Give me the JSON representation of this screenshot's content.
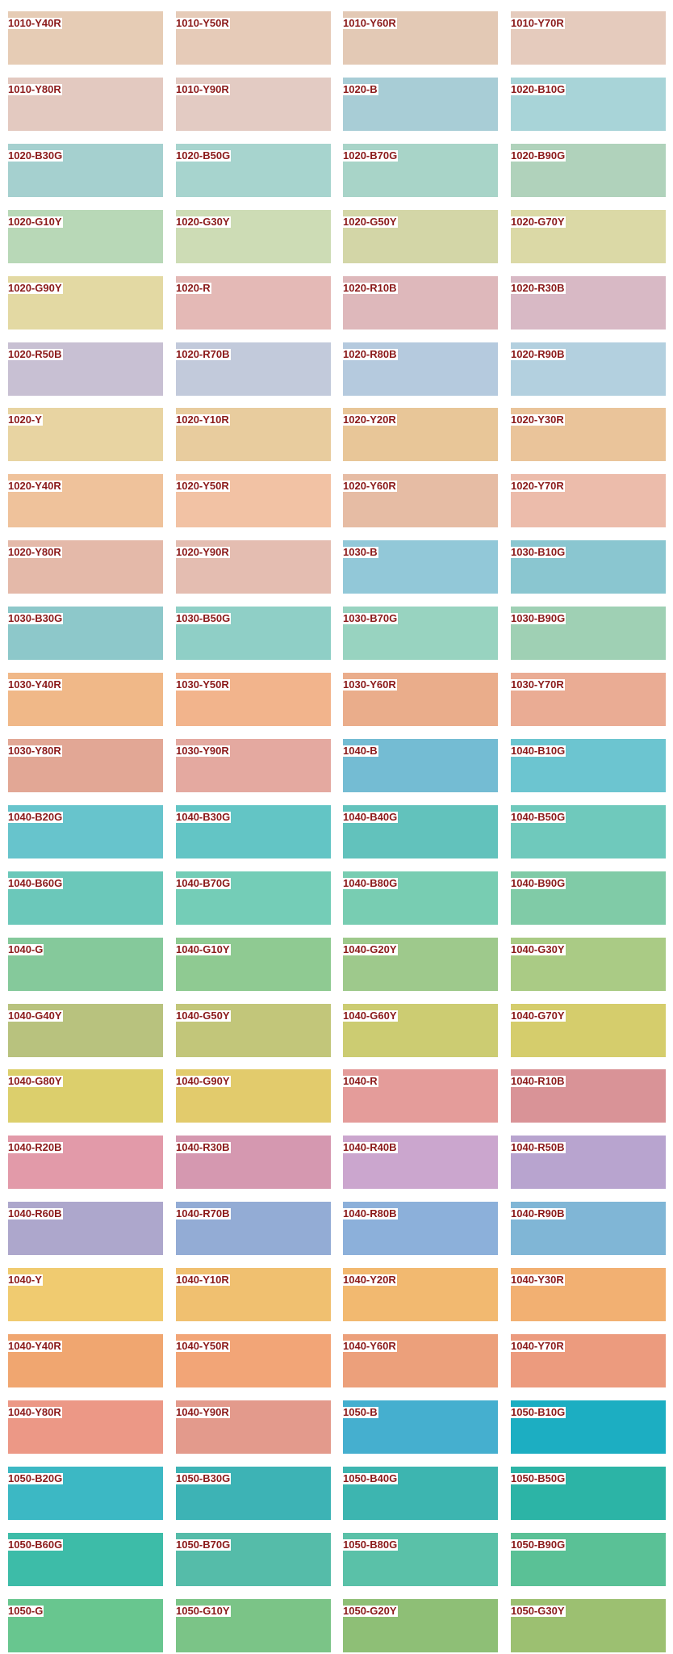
{
  "label_color": "#8b1a1a",
  "swatches": [
    {
      "label": "1010-Y40R",
      "color": "#e6ccb5"
    },
    {
      "label": "1010-Y50R",
      "color": "#e6cbb8"
    },
    {
      "label": "1010-Y60R",
      "color": "#e3c9b5"
    },
    {
      "label": "1010-Y70R",
      "color": "#e5cbbd"
    },
    {
      "label": "1010-Y80R",
      "color": "#e3c9c0"
    },
    {
      "label": "1010-Y90R",
      "color": "#e3cbc3"
    },
    {
      "label": "1020-B",
      "color": "#a8cdd6"
    },
    {
      "label": "1020-B10G",
      "color": "#a8d4d8"
    },
    {
      "label": "1020-B30G",
      "color": "#a5d0cf"
    },
    {
      "label": "1020-B50G",
      "color": "#a7d4ce"
    },
    {
      "label": "1020-B70G",
      "color": "#a8d4c8"
    },
    {
      "label": "1020-B90G",
      "color": "#b0d2bb"
    },
    {
      "label": "1020-G10Y",
      "color": "#b8d8b7"
    },
    {
      "label": "1020-G30Y",
      "color": "#cddcb5"
    },
    {
      "label": "1020-G50Y",
      "color": "#d3d6a7"
    },
    {
      "label": "1020-G70Y",
      "color": "#dbd9a6"
    },
    {
      "label": "1020-G90Y",
      "color": "#e3d9a3"
    },
    {
      "label": "1020-R",
      "color": "#e4b9b6"
    },
    {
      "label": "1020-R10B",
      "color": "#deb8bb"
    },
    {
      "label": "1020-R30B",
      "color": "#d8b9c5"
    },
    {
      "label": "1020-R50B",
      "color": "#c8c0d3"
    },
    {
      "label": "1020-R70B",
      "color": "#c2cadb"
    },
    {
      "label": "1020-R80B",
      "color": "#b5cade"
    },
    {
      "label": "1020-R90B",
      "color": "#b3d0df"
    },
    {
      "label": "1020-Y",
      "color": "#e8d4a2"
    },
    {
      "label": "1020-Y10R",
      "color": "#e8cc9e"
    },
    {
      "label": "1020-Y20R",
      "color": "#e8c698"
    },
    {
      "label": "1020-Y30R",
      "color": "#eac49a"
    },
    {
      "label": "1020-Y40R",
      "color": "#efc29b"
    },
    {
      "label": "1020-Y50R",
      "color": "#f2c2a4"
    },
    {
      "label": "1020-Y60R",
      "color": "#e6bca4"
    },
    {
      "label": "1020-Y70R",
      "color": "#ecbcab"
    },
    {
      "label": "1020-Y80R",
      "color": "#e4b9a9"
    },
    {
      "label": "1020-Y90R",
      "color": "#e4bdb1"
    },
    {
      "label": "1030-B",
      "color": "#92c8d8"
    },
    {
      "label": "1030-B10G",
      "color": "#8ac6d0"
    },
    {
      "label": "1030-B30G",
      "color": "#8dc8ca"
    },
    {
      "label": "1030-B50G",
      "color": "#8fcfc6"
    },
    {
      "label": "1030-B70G",
      "color": "#98d3c0"
    },
    {
      "label": "1030-B90G",
      "color": "#9fd0b4"
    },
    {
      "label": "1030-Y40R",
      "color": "#f0b888"
    },
    {
      "label": "1030-Y50R",
      "color": "#f2b48c"
    },
    {
      "label": "1030-Y60R",
      "color": "#eaad8b"
    },
    {
      "label": "1030-Y70R",
      "color": "#eaac94"
    },
    {
      "label": "1030-Y80R",
      "color": "#e2a795"
    },
    {
      "label": "1030-Y90R",
      "color": "#e4a9a0"
    },
    {
      "label": "1040-B",
      "color": "#74bcd3"
    },
    {
      "label": "1040-B10G",
      "color": "#6cc5d0"
    },
    {
      "label": "1040-B20G",
      "color": "#67c4cc"
    },
    {
      "label": "1040-B30G",
      "color": "#63c5c5"
    },
    {
      "label": "1040-B40G",
      "color": "#62c2bc"
    },
    {
      "label": "1040-B50G",
      "color": "#6fc9bc"
    },
    {
      "label": "1040-B60G",
      "color": "#6bc8ba"
    },
    {
      "label": "1040-B70G",
      "color": "#74cdb7"
    },
    {
      "label": "1040-B80G",
      "color": "#78cdb2"
    },
    {
      "label": "1040-B90G",
      "color": "#80cba7"
    },
    {
      "label": "1040-G",
      "color": "#85c99b"
    },
    {
      "label": "1040-G10Y",
      "color": "#8fca92"
    },
    {
      "label": "1040-G20Y",
      "color": "#9ec98c"
    },
    {
      "label": "1040-G30Y",
      "color": "#aacb85"
    },
    {
      "label": "1040-G40Y",
      "color": "#b8c27e"
    },
    {
      "label": "1040-G50Y",
      "color": "#c2c67a"
    },
    {
      "label": "1040-G60Y",
      "color": "#cccc72"
    },
    {
      "label": "1040-G70Y",
      "color": "#d5cd6c"
    },
    {
      "label": "1040-G80Y",
      "color": "#dccf6c"
    },
    {
      "label": "1040-G90Y",
      "color": "#e2cb6c"
    },
    {
      "label": "1040-R",
      "color": "#e49c9a"
    },
    {
      "label": "1040-R10B",
      "color": "#d99397"
    },
    {
      "label": "1040-R20B",
      "color": "#e29aa9"
    },
    {
      "label": "1040-R30B",
      "color": "#d598b0"
    },
    {
      "label": "1040-R40B",
      "color": "#cba6ce"
    },
    {
      "label": "1040-R50B",
      "color": "#b8a4cf"
    },
    {
      "label": "1040-R60B",
      "color": "#ada7cc"
    },
    {
      "label": "1040-R70B",
      "color": "#93acd5"
    },
    {
      "label": "1040-R80B",
      "color": "#8cb0da"
    },
    {
      "label": "1040-R90B",
      "color": "#80b6d6"
    },
    {
      "label": "1040-Y",
      "color": "#f0cb70"
    },
    {
      "label": "1040-Y10R",
      "color": "#f0c070"
    },
    {
      "label": "1040-Y20R",
      "color": "#f2b970"
    },
    {
      "label": "1040-Y30R",
      "color": "#f2b072"
    },
    {
      "label": "1040-Y40R",
      "color": "#f0a670"
    },
    {
      "label": "1040-Y50R",
      "color": "#f2a577"
    },
    {
      "label": "1040-Y60R",
      "color": "#eca07b"
    },
    {
      "label": "1040-Y70R",
      "color": "#ec9b7e"
    },
    {
      "label": "1040-Y80R",
      "color": "#ec9886"
    },
    {
      "label": "1040-Y90R",
      "color": "#e39a8c"
    },
    {
      "label": "1050-B",
      "color": "#45afcf"
    },
    {
      "label": "1050-B10G",
      "color": "#1caec2"
    },
    {
      "label": "1050-B20G",
      "color": "#3cb8c4"
    },
    {
      "label": "1050-B30G",
      "color": "#3db3b5"
    },
    {
      "label": "1050-B40G",
      "color": "#3db5b0"
    },
    {
      "label": "1050-B50G",
      "color": "#2cb4a6"
    },
    {
      "label": "1050-B60G",
      "color": "#3dbca8"
    },
    {
      "label": "1050-B70G",
      "color": "#55bca9"
    },
    {
      "label": "1050-B80G",
      "color": "#5ac1a8"
    },
    {
      "label": "1050-B90G",
      "color": "#5ac196"
    },
    {
      "label": "1050-G",
      "color": "#68c68f"
    },
    {
      "label": "1050-G10Y",
      "color": "#7bc487"
    },
    {
      "label": "1050-G20Y",
      "color": "#8ebf76"
    },
    {
      "label": "1050-G30Y",
      "color": "#9cc071"
    }
  ]
}
